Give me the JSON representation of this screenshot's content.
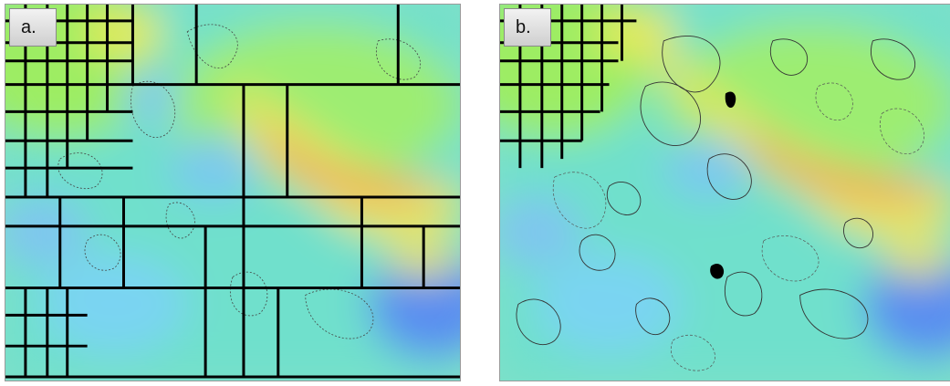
{
  "panels": [
    {
      "id": "a",
      "label": "a."
    },
    {
      "id": "b",
      "label": "b."
    }
  ],
  "colors": {
    "blue": "#5a8ef0",
    "cyan": "#7ee0f0",
    "aqua": "#6fe0c4",
    "green": "#8eea6c",
    "yellow": "#e8ea60",
    "orange": "#f0a060",
    "grid": "#000000",
    "contour": "#333333"
  }
}
